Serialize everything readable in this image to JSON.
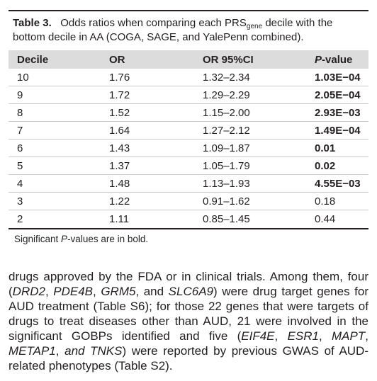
{
  "table": {
    "label": "Table 3.",
    "caption_pre": "Odds ratios when comparing each PRS",
    "caption_sub": "gene",
    "caption_post": " decile with the bottom decile in AA (COGA, SAGE, and YalePenn combined).",
    "headers": {
      "decile": "Decile",
      "or": "OR",
      "ci": "OR 95%CI",
      "p_italic": "P",
      "p_rest": "-value"
    },
    "rows": [
      {
        "decile": "10",
        "or": "1.76",
        "ci": "1.32–2.34",
        "p": "1.03E−04",
        "bold": true
      },
      {
        "decile": "9",
        "or": "1.72",
        "ci": "1.29–2.29",
        "p": "2.05E−04",
        "bold": true
      },
      {
        "decile": "8",
        "or": "1.52",
        "ci": "1.15–2.00",
        "p": "2.93E−03",
        "bold": true
      },
      {
        "decile": "7",
        "or": "1.64",
        "ci": "1.27–2.12",
        "p": "1.49E−04",
        "bold": true
      },
      {
        "decile": "6",
        "or": "1.43",
        "ci": "1.09–1.87",
        "p": "0.01",
        "bold": true
      },
      {
        "decile": "5",
        "or": "1.37",
        "ci": "1.05–1.79",
        "p": "0.02",
        "bold": true
      },
      {
        "decile": "4",
        "or": "1.48",
        "ci": "1.13–1.93",
        "p": "4.55E−03",
        "bold": true
      },
      {
        "decile": "3",
        "or": "1.22",
        "ci": "0.91–1.62",
        "p": "0.18",
        "bold": false
      },
      {
        "decile": "2",
        "or": "1.11",
        "ci": "0.85–1.45",
        "p": "0.44",
        "bold": false
      }
    ],
    "footnote_pre": "Significant ",
    "footnote_italic": "P",
    "footnote_post": "-values are in bold."
  },
  "paragraph": {
    "segments": [
      {
        "text": "drugs approved by the FDA or in clinical trials. Among them, four (",
        "italic": false
      },
      {
        "text": "DRD2",
        "italic": true
      },
      {
        "text": ", ",
        "italic": false
      },
      {
        "text": "PDE4B",
        "italic": true
      },
      {
        "text": ", ",
        "italic": false
      },
      {
        "text": "GRM5",
        "italic": true
      },
      {
        "text": ", and ",
        "italic": false
      },
      {
        "text": "SLC6A9",
        "italic": true
      },
      {
        "text": ") were drug target genes for AUD treatment (Table S6); for those 22 genes that were targets of drugs to treat diseases other than AUD, 21 were involved in the significant GOBPs identified and five (",
        "italic": false
      },
      {
        "text": "EIF4E",
        "italic": true
      },
      {
        "text": ", ",
        "italic": false
      },
      {
        "text": "ESR1",
        "italic": true
      },
      {
        "text": ", ",
        "italic": false
      },
      {
        "text": "MAPT",
        "italic": true
      },
      {
        "text": ", ",
        "italic": false
      },
      {
        "text": "METAP1",
        "italic": true
      },
      {
        "text": ", ",
        "italic": false
      },
      {
        "text": "and TNKS",
        "italic": true
      },
      {
        "text": ") were reported by previous GWAS of AUD-related phenotypes (Table S2).",
        "italic": false
      }
    ]
  }
}
